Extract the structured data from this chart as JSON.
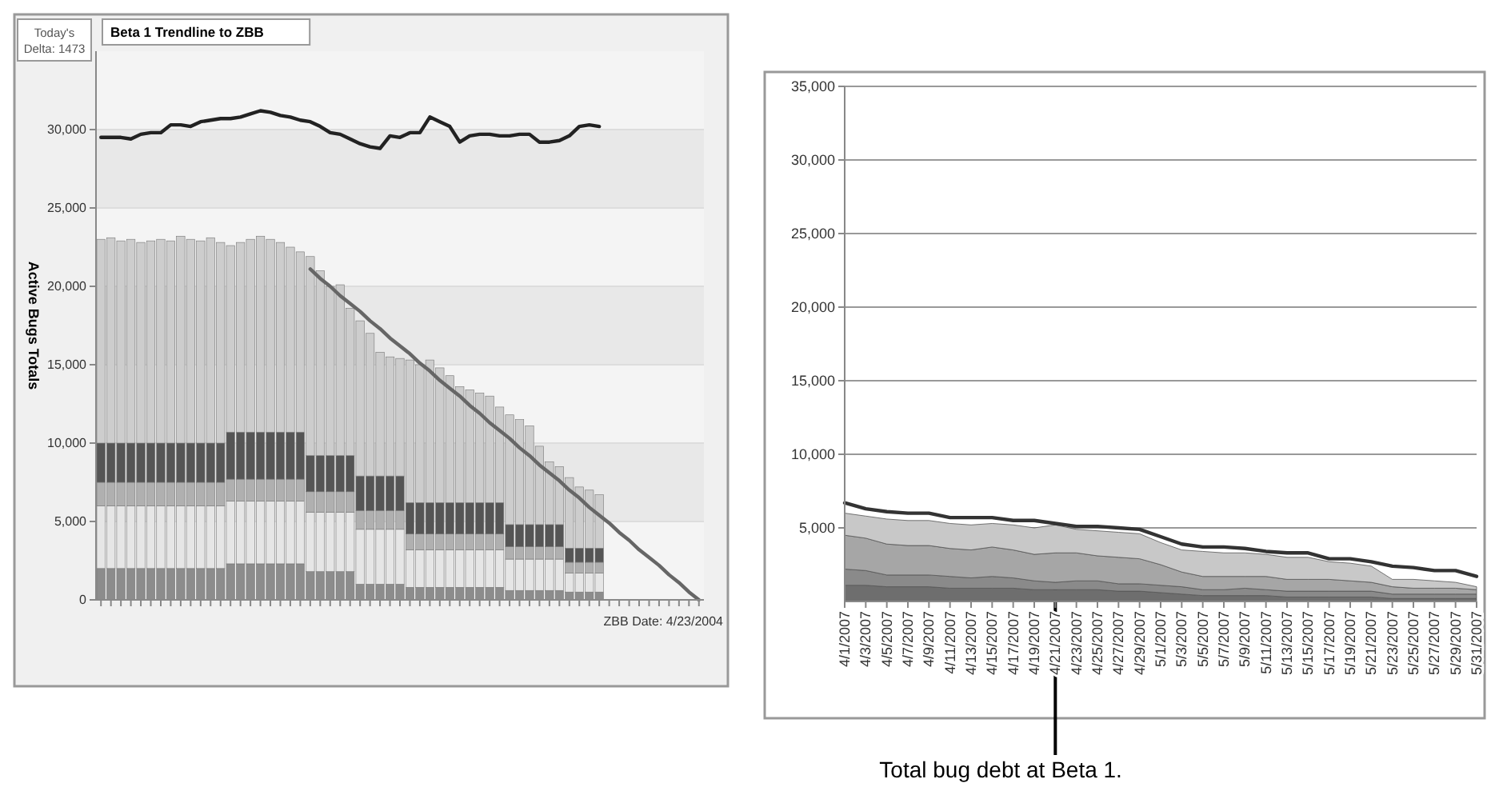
{
  "chart_data": [
    {
      "type": "bar",
      "title": "Beta 1 Trendline to ZBB",
      "ylabel": "Active Bugs Totals",
      "stacked": true,
      "grid": "y",
      "ylim": [
        0,
        35000
      ],
      "yticks": [
        0,
        {
          "value": 5000,
          "label": "5,000"
        },
        {
          "value": 10000,
          "label": "10,000"
        },
        {
          "value": 15000,
          "label": "15,000"
        },
        {
          "value": 20000,
          "label": "20,000"
        },
        {
          "value": 25000,
          "label": "25,000"
        },
        {
          "value": 30000,
          "label": "30,000"
        }
      ],
      "annotations": [
        "Today's Delta: 1473",
        "ZBB Date: 4/23/2004"
      ],
      "categories": [
        null,
        null,
        null,
        null,
        null,
        null,
        null,
        null,
        null,
        null,
        null,
        null,
        null,
        null,
        null,
        null,
        null,
        null,
        null,
        null,
        null,
        null,
        null,
        null,
        null,
        null,
        null,
        null,
        null,
        null,
        null,
        null,
        null,
        null,
        null,
        null,
        null,
        null,
        null,
        null,
        null,
        null,
        null,
        null,
        null,
        null,
        null,
        null,
        null,
        null,
        null,
        null,
        null,
        null,
        null,
        null,
        null,
        null,
        null,
        null,
        null
      ],
      "series": [
        {
          "color": "#8c8c8c",
          "values": [
            2000,
            2000,
            2000,
            2000,
            2000,
            2000,
            2000,
            2000,
            2000,
            2000,
            2000,
            2000,
            2000,
            2300,
            2300,
            2300,
            2300,
            2300,
            2300,
            2300,
            2300,
            1800,
            1800,
            1800,
            1800,
            1800,
            1000,
            1000,
            1000,
            1000,
            1000,
            800,
            800,
            800,
            800,
            800,
            800,
            800,
            800,
            800,
            800,
            600,
            600,
            600,
            600,
            600,
            600,
            500,
            500,
            500,
            500,
            null,
            null,
            null,
            null,
            null,
            null,
            null,
            null,
            null,
            null
          ]
        },
        {
          "color": "#e6e6e6",
          "values": [
            4000,
            4000,
            4000,
            4000,
            4000,
            4000,
            4000,
            4000,
            4000,
            4000,
            4000,
            4000,
            4000,
            4000,
            4000,
            4000,
            4000,
            4000,
            4000,
            4000,
            4000,
            3800,
            3800,
            3800,
            3800,
            3800,
            3500,
            3500,
            3500,
            3500,
            3500,
            2400,
            2400,
            2400,
            2400,
            2400,
            2400,
            2400,
            2400,
            2400,
            2400,
            2000,
            2000,
            2000,
            2000,
            2000,
            2000,
            1200,
            1200,
            1200,
            1200,
            null,
            null,
            null,
            null,
            null,
            null,
            null,
            null,
            null,
            null
          ]
        },
        {
          "color": "#b0b0b0",
          "values": [
            1500,
            1500,
            1500,
            1500,
            1500,
            1500,
            1500,
            1500,
            1500,
            1500,
            1500,
            1500,
            1500,
            1400,
            1400,
            1400,
            1400,
            1400,
            1400,
            1400,
            1400,
            1300,
            1300,
            1300,
            1300,
            1300,
            1200,
            1200,
            1200,
            1200,
            1200,
            1000,
            1000,
            1000,
            1000,
            1000,
            1000,
            1000,
            1000,
            1000,
            1000,
            800,
            800,
            800,
            800,
            800,
            800,
            700,
            700,
            700,
            700,
            null,
            null,
            null,
            null,
            null,
            null,
            null,
            null,
            null,
            null
          ]
        },
        {
          "color": "#555555",
          "values": [
            2500,
            2500,
            2500,
            2500,
            2500,
            2500,
            2500,
            2500,
            2500,
            2500,
            2500,
            2500,
            2500,
            3000,
            3000,
            3000,
            3000,
            3000,
            3000,
            3000,
            3000,
            2300,
            2300,
            2300,
            2300,
            2300,
            2200,
            2200,
            2200,
            2200,
            2200,
            2000,
            2000,
            2000,
            2000,
            2000,
            2000,
            2000,
            2000,
            2000,
            2000,
            1400,
            1400,
            1400,
            1400,
            1400,
            1400,
            900,
            900,
            900,
            900,
            null,
            null,
            null,
            null,
            null,
            null,
            null,
            null,
            null,
            null
          ]
        },
        {
          "color": "#cdcdcd",
          "values": [
            13000,
            13100,
            12900,
            13000,
            12800,
            12900,
            13000,
            12900,
            13200,
            13000,
            12900,
            13100,
            12800,
            11900,
            12100,
            12300,
            12500,
            12300,
            12100,
            11800,
            11500,
            12700,
            11800,
            10800,
            10900,
            9400,
            9900,
            9100,
            7900,
            7600,
            7500,
            9100,
            8800,
            9100,
            8600,
            8100,
            7400,
            7200,
            7000,
            6800,
            6100,
            7000,
            6700,
            6300,
            5000,
            4000,
            3700,
            4500,
            3900,
            3700,
            3400,
            null,
            null,
            null,
            null,
            null,
            null,
            null,
            null,
            null,
            null
          ]
        },
        {
          "type": "line",
          "color": "#222222",
          "values": [
            29500,
            29500,
            29500,
            29400,
            29700,
            29800,
            29800,
            30300,
            30300,
            30200,
            30500,
            30600,
            30700,
            30700,
            30800,
            31000,
            31200,
            31100,
            30900,
            30800,
            30600,
            30500,
            30200,
            29800,
            29700,
            29400,
            29100,
            28900,
            28800,
            29600,
            29500,
            29800,
            29800,
            30800,
            30500,
            30200,
            29200,
            29600,
            29700,
            29700,
            29600,
            29600,
            29700,
            29700,
            29200,
            29200,
            29300,
            29600,
            30200,
            30300,
            30200,
            null,
            null,
            null,
            null,
            null,
            null,
            null,
            null,
            null,
            null
          ]
        },
        {
          "type": "line",
          "color": "#666666",
          "values": [
            null,
            null,
            null,
            null,
            null,
            null,
            null,
            null,
            null,
            null,
            null,
            null,
            null,
            null,
            null,
            null,
            null,
            null,
            null,
            null,
            null,
            21100,
            20500,
            20000,
            19400,
            18900,
            18400,
            17800,
            17300,
            16700,
            16200,
            15700,
            15100,
            14600,
            14000,
            13500,
            13000,
            12400,
            11900,
            11300,
            10800,
            10300,
            9700,
            9200,
            8600,
            8100,
            7600,
            7000,
            6500,
            5900,
            5400,
            4900,
            4300,
            3800,
            3200,
            2700,
            2200,
            1600,
            1100,
            500,
            0
          ]
        }
      ]
    },
    {
      "type": "area",
      "stacked": true,
      "grid": "y",
      "ylim": [
        0,
        35000
      ],
      "yticks": [
        {
          "value": 5000,
          "label": "5,000"
        },
        {
          "value": 10000,
          "label": "10,000"
        },
        {
          "value": 15000,
          "label": "15,000"
        },
        {
          "value": 20000,
          "label": "20,000"
        },
        {
          "value": 25000,
          "label": "25,000"
        },
        {
          "value": 30000,
          "label": "30,000"
        },
        {
          "value": 35000,
          "label": "35,000"
        }
      ],
      "annotations": [
        {
          "text": "Total bug debt at Beta 1.",
          "x": "4/21/2007",
          "y": 5300
        }
      ],
      "categories": [
        "4/1/2007",
        "4/3/2007",
        "4/5/2007",
        "4/7/2007",
        "4/9/2007",
        "4/11/2007",
        "4/13/2007",
        "4/15/2007",
        "4/17/2007",
        "4/19/2007",
        "4/21/2007",
        "4/23/2007",
        "4/25/2007",
        "4/27/2007",
        "4/29/2007",
        "5/1/2007",
        "5/3/2007",
        "5/5/2007",
        "5/7/2007",
        "5/9/2007",
        "5/11/2007",
        "5/13/2007",
        "5/15/2007",
        "5/17/2007",
        "5/19/2007",
        "5/21/2007",
        "5/23/2007",
        "5/25/2007",
        "5/27/2007",
        "5/29/2007",
        "5/31/2007"
      ],
      "series": [
        {
          "color": "#6e6e6e",
          "values": [
            1100,
            1100,
            1000,
            1000,
            1000,
            900,
            900,
            900,
            900,
            800,
            800,
            800,
            800,
            700,
            700,
            600,
            500,
            400,
            400,
            400,
            400,
            300,
            300,
            300,
            300,
            300,
            200,
            200,
            200,
            200,
            200
          ]
        },
        {
          "color": "#8a8a8a",
          "values": [
            1100,
            1000,
            800,
            800,
            800,
            800,
            700,
            800,
            700,
            600,
            500,
            600,
            600,
            500,
            500,
            500,
            500,
            400,
            400,
            500,
            400,
            400,
            400,
            400,
            400,
            400,
            300,
            300,
            300,
            300,
            300
          ]
        },
        {
          "color": "#a6a6a6",
          "values": [
            2300,
            2200,
            2100,
            2000,
            2000,
            1900,
            1900,
            2000,
            1900,
            1800,
            2000,
            1900,
            1700,
            1800,
            1700,
            1400,
            1000,
            900,
            900,
            800,
            900,
            800,
            800,
            800,
            700,
            600,
            500,
            400,
            400,
            400,
            300
          ]
        },
        {
          "color": "#c8c8c8",
          "values": [
            1500,
            1500,
            1700,
            1700,
            1700,
            1700,
            1700,
            1600,
            1700,
            1800,
            1900,
            1600,
            1700,
            1700,
            1700,
            1500,
            1500,
            1700,
            1600,
            1600,
            1500,
            1500,
            1500,
            1200,
            1200,
            1100,
            500,
            600,
            500,
            400,
            200
          ]
        },
        {
          "type": "line",
          "color": "#333333",
          "values": [
            6700,
            6300,
            6100,
            6000,
            6000,
            5700,
            5700,
            5700,
            5500,
            5500,
            5300,
            5100,
            5100,
            5000,
            4900,
            4400,
            3900,
            3700,
            3700,
            3600,
            3400,
            3300,
            3300,
            2900,
            2900,
            2700,
            2400,
            2300,
            2100,
            2100,
            1700
          ]
        }
      ]
    }
  ]
}
